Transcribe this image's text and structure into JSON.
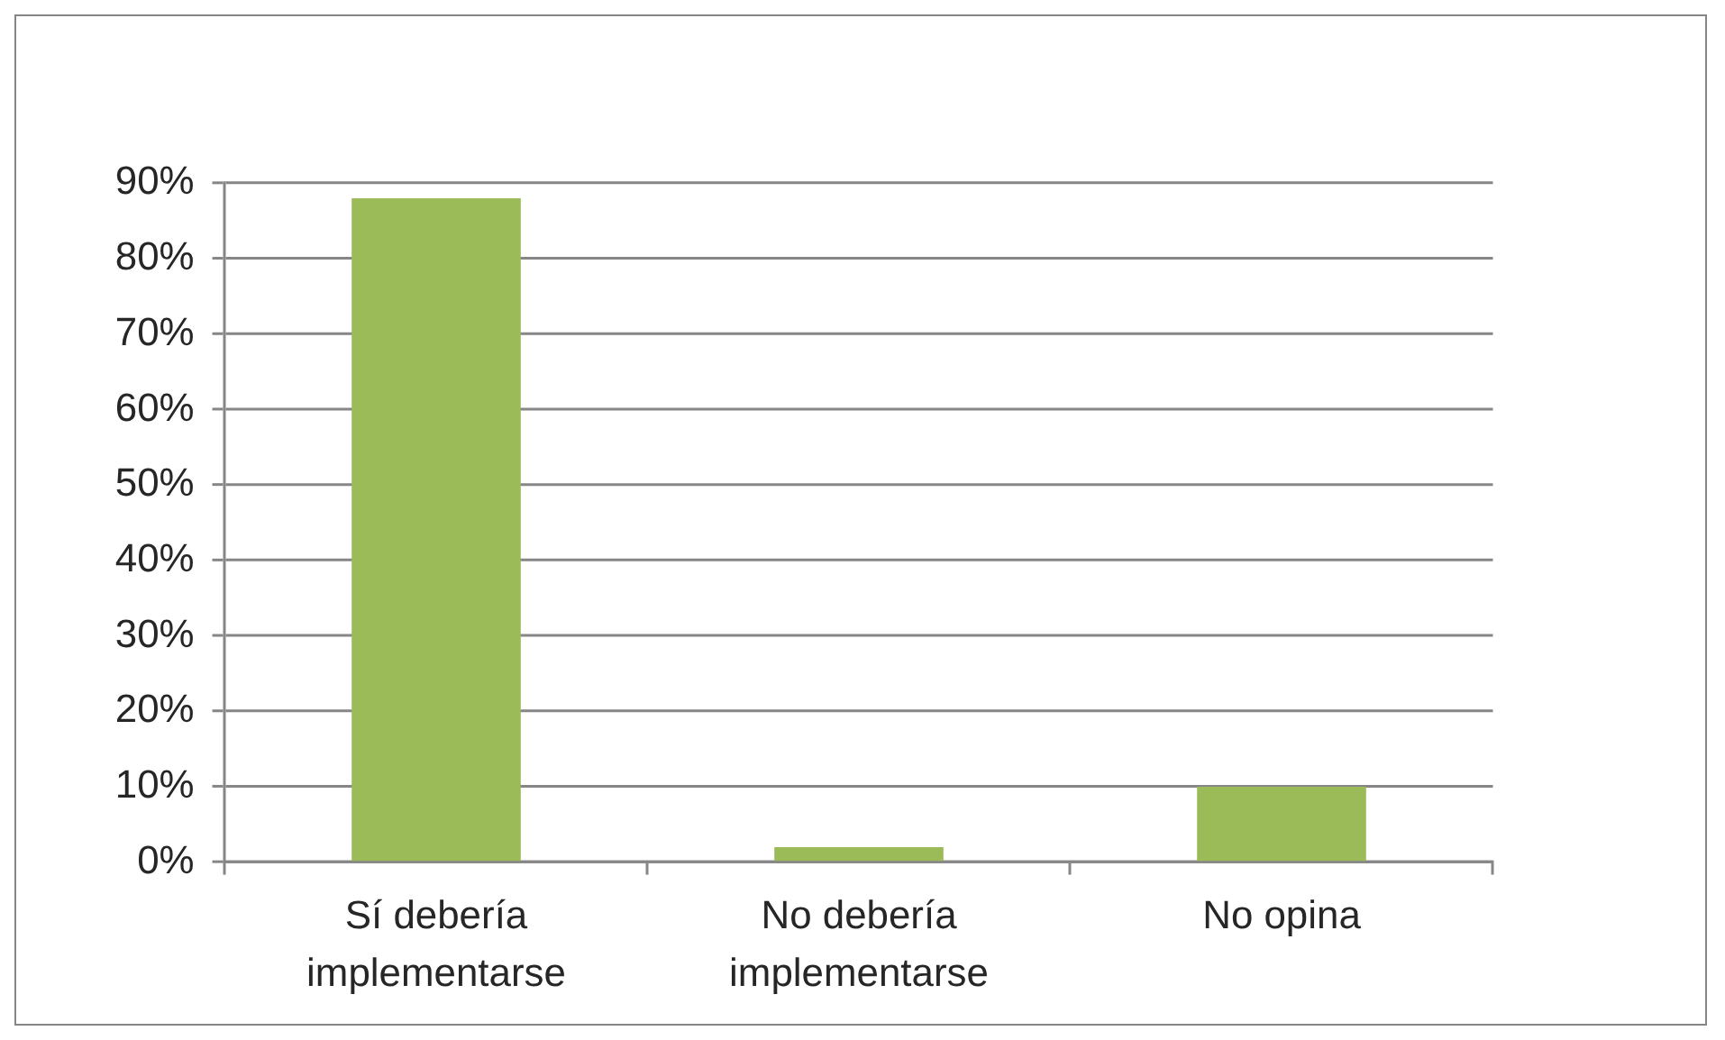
{
  "chart_data": {
    "type": "bar",
    "categories": [
      "Sí debería implementarse",
      "No debería implementarse",
      "No opina"
    ],
    "values": [
      88,
      2,
      10
    ],
    "color": "#9bbb59",
    "ylim": [
      0,
      90
    ],
    "yticks": [
      {
        "value": 0,
        "label": "0%"
      },
      {
        "value": 10,
        "label": "10%"
      },
      {
        "value": 20,
        "label": "20%"
      },
      {
        "value": 30,
        "label": "30%"
      },
      {
        "value": 40,
        "label": "40%"
      },
      {
        "value": 50,
        "label": "50%"
      },
      {
        "value": 60,
        "label": "60%"
      },
      {
        "value": 70,
        "label": "70%"
      },
      {
        "value": 80,
        "label": "80%"
      },
      {
        "value": 90,
        "label": "90%"
      }
    ],
    "grid": "y"
  }
}
